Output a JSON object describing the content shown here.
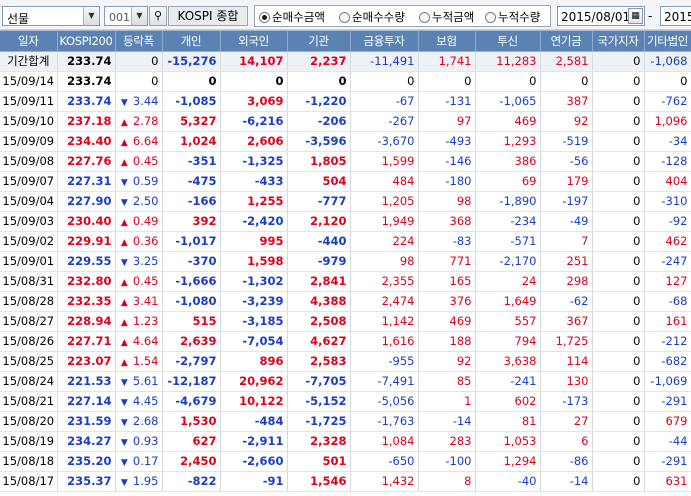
{
  "toolbar": {
    "market": "선물",
    "code": "001",
    "search_icon": "magnifier-icon",
    "index_name": "KOSPI 종합",
    "radios": [
      "순매수금액",
      "순매수수량",
      "누적금액",
      "누적수량"
    ],
    "selected_radio": 0,
    "date_from": "2015/08/01",
    "date_sep": "-",
    "date_to": "2015"
  },
  "columns": [
    "일자",
    "KOSPI200",
    "등락폭",
    "개인",
    "외국인",
    "기관",
    "금융투자",
    "보험",
    "투신",
    "연기금",
    "국가지자",
    "기타법인"
  ],
  "colors": {
    "up": "#e0001b",
    "down": "#1a3cc8",
    "header": "#5a82b4"
  },
  "rows": [
    {
      "date": "기간합계",
      "k200": "233.74",
      "dir": "",
      "chg": "0",
      "ind": "-15,276",
      "frn": "14,107",
      "inst": "2,237",
      "fin": "-11,491",
      "ins": "1,741",
      "trust": "11,283",
      "pen": "2,581",
      "gov": "0",
      "etc": "-1,068"
    },
    {
      "date": "15/09/14",
      "k200": "233.74",
      "dir": "",
      "chg": "0",
      "ind": "0",
      "frn": "0",
      "inst": "0",
      "fin": "0",
      "ins": "0",
      "trust": "0",
      "pen": "0",
      "gov": "0",
      "etc": "0"
    },
    {
      "date": "15/09/11",
      "k200": "233.74",
      "dir": "down",
      "chg": "3.44",
      "ind": "-1,085",
      "frn": "3,069",
      "inst": "-1,220",
      "fin": "-67",
      "ins": "-131",
      "trust": "-1,065",
      "pen": "387",
      "gov": "0",
      "etc": "-762"
    },
    {
      "date": "15/09/10",
      "k200": "237.18",
      "dir": "up",
      "chg": "2.78",
      "ind": "5,327",
      "frn": "-6,216",
      "inst": "-206",
      "fin": "-267",
      "ins": "97",
      "trust": "469",
      "pen": "92",
      "gov": "0",
      "etc": "1,096"
    },
    {
      "date": "15/09/09",
      "k200": "234.40",
      "dir": "up",
      "chg": "6.64",
      "ind": "1,024",
      "frn": "2,606",
      "inst": "-3,596",
      "fin": "-3,670",
      "ins": "-493",
      "trust": "1,293",
      "pen": "-519",
      "gov": "0",
      "etc": "-34"
    },
    {
      "date": "15/09/08",
      "k200": "227.76",
      "dir": "up",
      "chg": "0.45",
      "ind": "-351",
      "frn": "-1,325",
      "inst": "1,805",
      "fin": "1,599",
      "ins": "-146",
      "trust": "386",
      "pen": "-56",
      "gov": "0",
      "etc": "-128"
    },
    {
      "date": "15/09/07",
      "k200": "227.31",
      "dir": "down",
      "chg": "0.59",
      "ind": "-475",
      "frn": "-433",
      "inst": "504",
      "fin": "484",
      "ins": "-180",
      "trust": "69",
      "pen": "179",
      "gov": "0",
      "etc": "404"
    },
    {
      "date": "15/09/04",
      "k200": "227.90",
      "dir": "down",
      "chg": "2.50",
      "ind": "-166",
      "frn": "1,255",
      "inst": "-777",
      "fin": "1,205",
      "ins": "98",
      "trust": "-1,890",
      "pen": "-197",
      "gov": "0",
      "etc": "-310"
    },
    {
      "date": "15/09/03",
      "k200": "230.40",
      "dir": "up",
      "chg": "0.49",
      "ind": "392",
      "frn": "-2,420",
      "inst": "2,120",
      "fin": "1,949",
      "ins": "368",
      "trust": "-234",
      "pen": "-49",
      "gov": "0",
      "etc": "-92"
    },
    {
      "date": "15/09/02",
      "k200": "229.91",
      "dir": "up",
      "chg": "0.36",
      "ind": "-1,017",
      "frn": "995",
      "inst": "-440",
      "fin": "224",
      "ins": "-83",
      "trust": "-571",
      "pen": "7",
      "gov": "0",
      "etc": "462"
    },
    {
      "date": "15/09/01",
      "k200": "229.55",
      "dir": "down",
      "chg": "3.25",
      "ind": "-370",
      "frn": "1,598",
      "inst": "-979",
      "fin": "98",
      "ins": "771",
      "trust": "-2,170",
      "pen": "251",
      "gov": "0",
      "etc": "-247"
    },
    {
      "date": "15/08/31",
      "k200": "232.80",
      "dir": "up",
      "chg": "0.45",
      "ind": "-1,666",
      "frn": "-1,302",
      "inst": "2,841",
      "fin": "2,355",
      "ins": "165",
      "trust": "24",
      "pen": "298",
      "gov": "0",
      "etc": "127"
    },
    {
      "date": "15/08/28",
      "k200": "232.35",
      "dir": "up",
      "chg": "3.41",
      "ind": "-1,080",
      "frn": "-3,239",
      "inst": "4,388",
      "fin": "2,474",
      "ins": "376",
      "trust": "1,649",
      "pen": "-62",
      "gov": "0",
      "etc": "-68"
    },
    {
      "date": "15/08/27",
      "k200": "228.94",
      "dir": "up",
      "chg": "1.23",
      "ind": "515",
      "frn": "-3,185",
      "inst": "2,508",
      "fin": "1,142",
      "ins": "469",
      "trust": "557",
      "pen": "367",
      "gov": "0",
      "etc": "161"
    },
    {
      "date": "15/08/26",
      "k200": "227.71",
      "dir": "up",
      "chg": "4.64",
      "ind": "2,639",
      "frn": "-7,054",
      "inst": "4,627",
      "fin": "1,616",
      "ins": "188",
      "trust": "794",
      "pen": "1,725",
      "gov": "0",
      "etc": "-212"
    },
    {
      "date": "15/08/25",
      "k200": "223.07",
      "dir": "up",
      "chg": "1.54",
      "ind": "-2,797",
      "frn": "896",
      "inst": "2,583",
      "fin": "-955",
      "ins": "92",
      "trust": "3,638",
      "pen": "114",
      "gov": "0",
      "etc": "-682"
    },
    {
      "date": "15/08/24",
      "k200": "221.53",
      "dir": "down",
      "chg": "5.61",
      "ind": "-12,187",
      "frn": "20,962",
      "inst": "-7,705",
      "fin": "-7,491",
      "ins": "85",
      "trust": "-241",
      "pen": "130",
      "gov": "0",
      "etc": "-1,069"
    },
    {
      "date": "15/08/21",
      "k200": "227.14",
      "dir": "down",
      "chg": "4.45",
      "ind": "-4,679",
      "frn": "10,122",
      "inst": "-5,152",
      "fin": "-5,056",
      "ins": "1",
      "trust": "602",
      "pen": "-173",
      "gov": "0",
      "etc": "-291"
    },
    {
      "date": "15/08/20",
      "k200": "231.59",
      "dir": "down",
      "chg": "2.68",
      "ind": "1,530",
      "frn": "-484",
      "inst": "-1,725",
      "fin": "-1,763",
      "ins": "-14",
      "trust": "81",
      "pen": "27",
      "gov": "0",
      "etc": "679"
    },
    {
      "date": "15/08/19",
      "k200": "234.27",
      "dir": "down",
      "chg": "0.93",
      "ind": "627",
      "frn": "-2,911",
      "inst": "2,328",
      "fin": "1,084",
      "ins": "283",
      "trust": "1,053",
      "pen": "6",
      "gov": "0",
      "etc": "-44"
    },
    {
      "date": "15/08/18",
      "k200": "235.20",
      "dir": "down",
      "chg": "0.17",
      "ind": "2,450",
      "frn": "-2,660",
      "inst": "501",
      "fin": "-650",
      "ins": "-100",
      "trust": "1,294",
      "pen": "-86",
      "gov": "0",
      "etc": "-291"
    },
    {
      "date": "15/08/17",
      "k200": "235.37",
      "dir": "down",
      "chg": "1.95",
      "ind": "-822",
      "frn": "-91",
      "inst": "1,546",
      "fin": "1,432",
      "ins": "8",
      "trust": "-40",
      "pen": "-14",
      "gov": "0",
      "etc": "631"
    }
  ]
}
